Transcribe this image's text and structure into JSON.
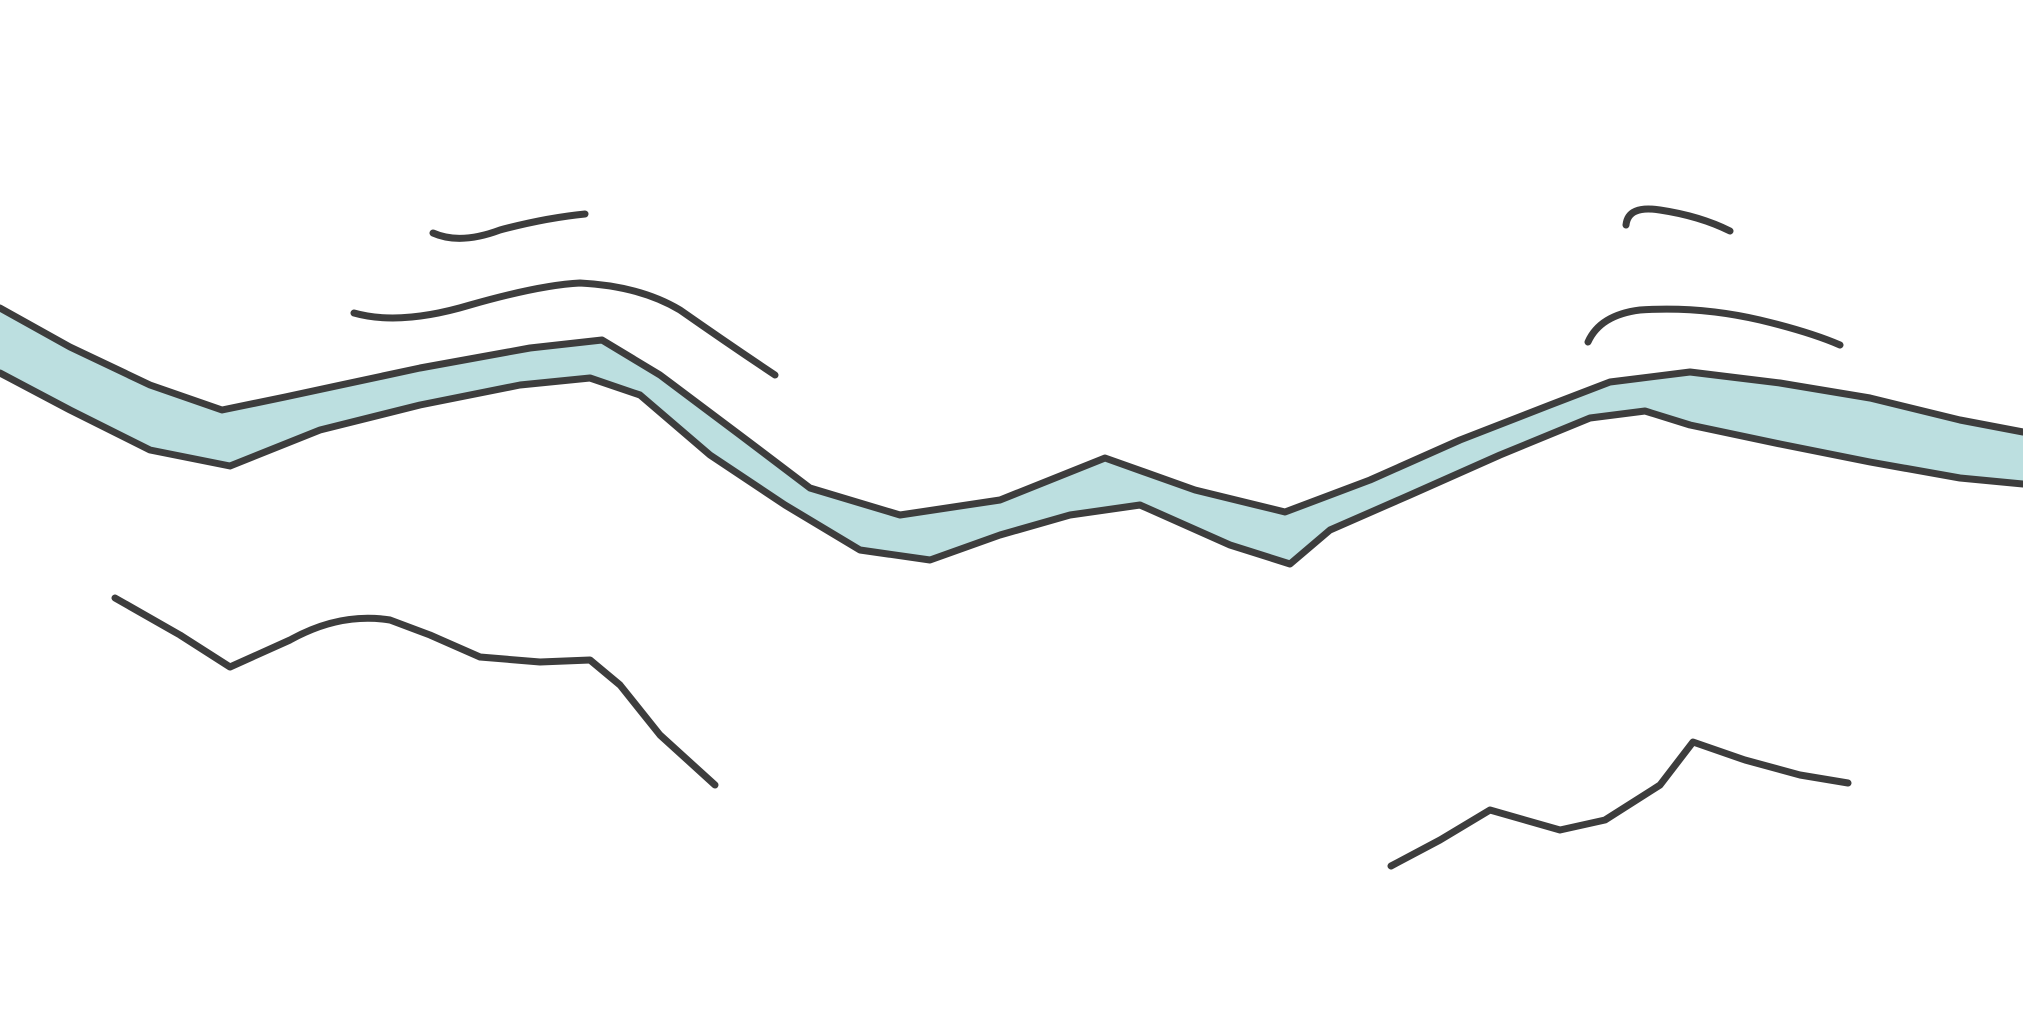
{
  "colors": {
    "background": "#ffffff",
    "ink": "#3d3d3d",
    "river": "#bcdfe0"
  },
  "texts": []
}
